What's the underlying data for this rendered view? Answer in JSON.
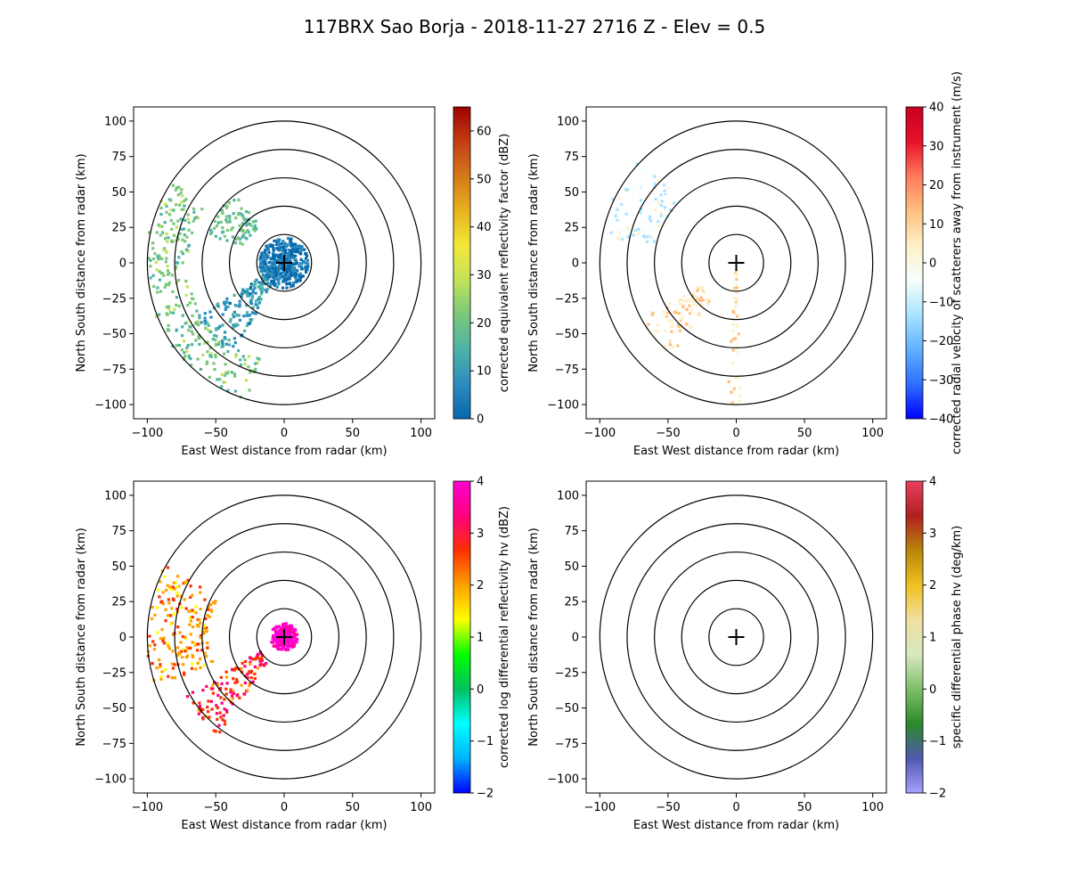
{
  "figure": {
    "title": "117BRX Sao Borja - 2018-11-27 2716 Z -  Elev = 0.5"
  },
  "chart_data": [
    {
      "type": "heatmap",
      "field": "reflectivity",
      "xlabel": "East West distance from radar (km)",
      "ylabel": "North South distance from radar (km)",
      "xlim": [
        -110,
        110
      ],
      "ylim": [
        -110,
        110
      ],
      "xticks": [
        -100,
        -50,
        0,
        50,
        100
      ],
      "yticks": [
        100,
        75,
        50,
        25,
        0,
        -25,
        -50,
        -75,
        -100
      ],
      "range_rings_km": [
        20,
        40,
        60,
        80,
        100
      ],
      "colorbar": {
        "label": "corrected equivalent reflectivity factor (dBZ)",
        "min": 0,
        "max": 65,
        "ticks": [
          0,
          10,
          20,
          30,
          40,
          50,
          60
        ],
        "colors": [
          "#0868ac",
          "#2b8cbe",
          "#4eb3a7",
          "#7bc77a",
          "#c2e35a",
          "#f2e83a",
          "#e8b21c",
          "#d5781a",
          "#c33e14",
          "#9e0000"
        ]
      },
      "echoes": [
        {
          "desc": "western stratiform band",
          "az_from": 195,
          "az_to": 305,
          "r_from": 70,
          "r_to": 101,
          "value": 22
        },
        {
          "desc": "southwest line",
          "az_from": 210,
          "az_to": 240,
          "r_from": 5,
          "r_to": 75,
          "value": 12
        },
        {
          "desc": "near-radar clutter",
          "az_from": 0,
          "az_to": 360,
          "r_from": 0,
          "r_to": 18,
          "value": 6
        },
        {
          "desc": "scattered northwest cells",
          "az_from": 290,
          "az_to": 325,
          "r_from": 30,
          "r_to": 60,
          "value": 20
        }
      ]
    },
    {
      "type": "heatmap",
      "field": "velocity",
      "xlabel": "East West distance from radar (km)",
      "ylabel": "North South distance from radar (km)",
      "xlim": [
        -110,
        110
      ],
      "ylim": [
        -110,
        110
      ],
      "xticks": [
        -100,
        -50,
        0,
        50,
        100
      ],
      "yticks": [
        100,
        75,
        50,
        25,
        0,
        -25,
        -50,
        -75,
        -100
      ],
      "range_rings_km": [
        20,
        40,
        60,
        80,
        100
      ],
      "colorbar": {
        "label": "corrected radial velocity of scatterers away from instrument (m/s)",
        "min": -40,
        "max": 40,
        "ticks": [
          -40,
          -30,
          -20,
          -10,
          0,
          10,
          20,
          30,
          40
        ],
        "colors": [
          "#0000ff",
          "#2f6fff",
          "#5fb0ff",
          "#a8e4ff",
          "#f5fffb",
          "#fff0c8",
          "#ffc080",
          "#ff7a5a",
          "#e8102a",
          "#c80020"
        ]
      },
      "echoes": [
        {
          "desc": "western approaching band",
          "az_from": 280,
          "az_to": 318,
          "r_from": 60,
          "r_to": 101,
          "value": -6
        },
        {
          "desc": "southwest receding band",
          "az_from": 215,
          "az_to": 240,
          "r_from": 30,
          "r_to": 80,
          "value": 5
        },
        {
          "desc": "southern spoke",
          "az_from": 178,
          "az_to": 184,
          "r_from": 5,
          "r_to": 100,
          "value": 7
        }
      ]
    },
    {
      "type": "heatmap",
      "field": "differential_reflectivity",
      "xlabel": "East West distance from radar (km)",
      "ylabel": "North South distance from radar (km)",
      "xlim": [
        -110,
        110
      ],
      "ylim": [
        -110,
        110
      ],
      "xticks": [
        -100,
        -50,
        0,
        50,
        100
      ],
      "yticks": [
        100,
        75,
        50,
        25,
        0,
        -25,
        -50,
        -75,
        -100
      ],
      "range_rings_km": [
        20,
        40,
        60,
        80,
        100
      ],
      "colorbar": {
        "label": "corrected log differential reflectivity hv (dBZ)",
        "min": -2,
        "max": 4,
        "ticks": [
          -2,
          -1,
          0,
          1,
          2,
          3,
          4
        ],
        "colors": [
          "#0000ff",
          "#00b4ff",
          "#00ffff",
          "#00c060",
          "#00ff00",
          "#ffff00",
          "#ffa000",
          "#ff3000",
          "#ff0080",
          "#ff00d0"
        ]
      },
      "echoes": [
        {
          "desc": "western band",
          "az_from": 250,
          "az_to": 300,
          "r_from": 55,
          "r_to": 101,
          "value": 2
        },
        {
          "desc": "southwest line",
          "az_from": 215,
          "az_to": 240,
          "r_from": 20,
          "r_to": 85,
          "value": 2.6
        },
        {
          "desc": "near-radar",
          "az_from": 0,
          "az_to": 360,
          "r_from": 0,
          "r_to": 10,
          "value": 3.8
        }
      ]
    },
    {
      "type": "heatmap",
      "field": "specific_differential_phase",
      "xlabel": "East West distance from radar (km)",
      "ylabel": "North South distance from radar (km)",
      "xlim": [
        -110,
        110
      ],
      "ylim": [
        -110,
        110
      ],
      "xticks": [
        -100,
        -50,
        0,
        50,
        100
      ],
      "yticks": [
        100,
        75,
        50,
        25,
        0,
        -25,
        -50,
        -75,
        -100
      ],
      "range_rings_km": [
        20,
        40,
        60,
        80,
        100
      ],
      "colorbar": {
        "label": "specific differential phase hv (deg/km)",
        "min": -2,
        "max": 4,
        "ticks": [
          -2,
          -1,
          0,
          1,
          2,
          3,
          4
        ],
        "colors": [
          "#a8a0ff",
          "#5058b0",
          "#2a8a2a",
          "#7fbf6a",
          "#d8e8c0",
          "#f0e0a0",
          "#f0c020",
          "#b8860b",
          "#b02020",
          "#e84060"
        ]
      },
      "echoes": []
    }
  ]
}
